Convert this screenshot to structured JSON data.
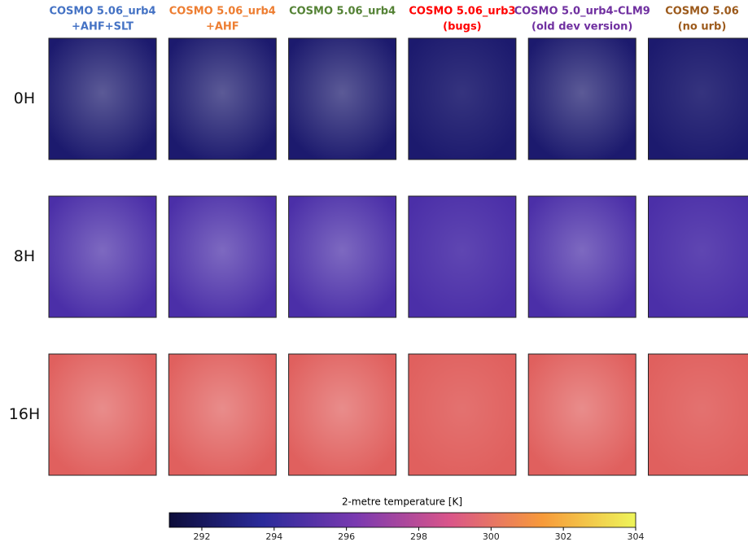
{
  "chart_data": {
    "type": "map-grid",
    "columns": [
      {
        "title": [
          "COSMO 5.06_urb4",
          "+AHF+SLT"
        ],
        "color": "#4472c4"
      },
      {
        "title": [
          "COSMO 5.06_urb4",
          "+AHF"
        ],
        "color": "#ed7d31"
      },
      {
        "title": [
          "COSMO 5.06_urb4"
        ],
        "color": "#548235"
      },
      {
        "title": [
          "COSMO 5.06_urb3",
          "(bugs)"
        ],
        "color": "#ff0000"
      },
      {
        "title": [
          "COSMO 5.0_urb4-CLM9",
          "(old dev version)"
        ],
        "color": "#7030a0"
      },
      {
        "title": [
          "COSMO 5.06",
          "(no urb)"
        ],
        "color": "#9c5a1c"
      }
    ],
    "rows": [
      {
        "label": "0H",
        "color": "#1c1a6e"
      },
      {
        "label": "8H",
        "color": "#4b2fa8"
      },
      {
        "label": "16H",
        "color": "#e0605e"
      }
    ],
    "colorbar": {
      "label": "2-metre temperature [K]",
      "xlim": [
        291.1,
        304
      ],
      "xticks": [
        292,
        294,
        296,
        298,
        300,
        302,
        304
      ]
    }
  }
}
